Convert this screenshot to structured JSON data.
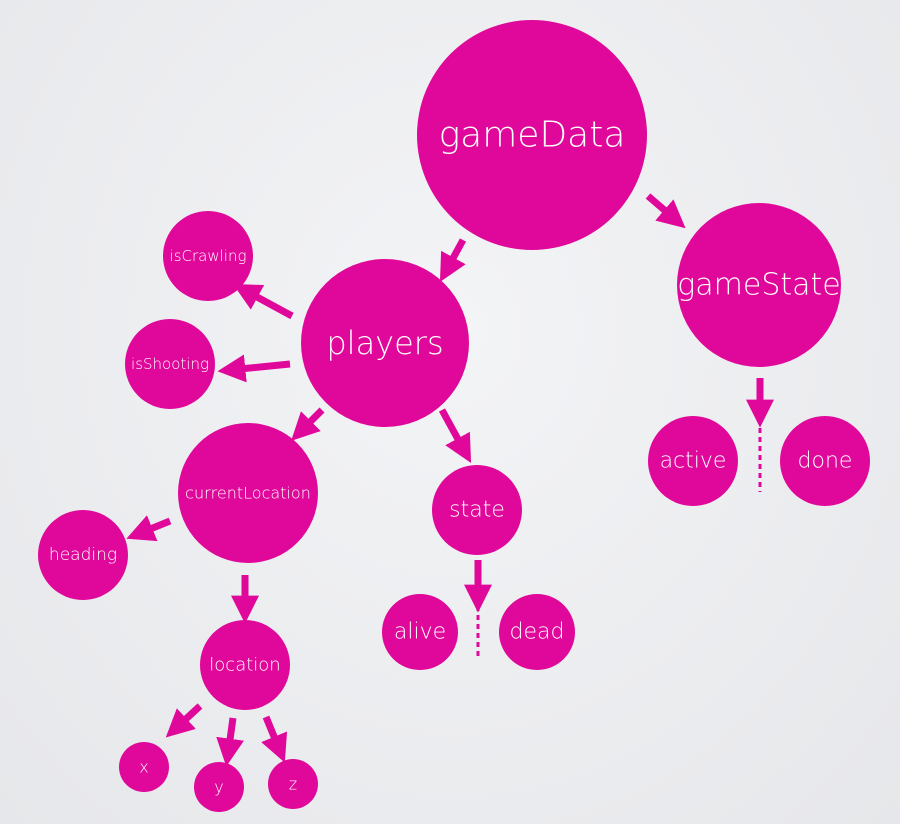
{
  "diagram": {
    "type": "tree",
    "color": "#e0089a",
    "nodes": [
      {
        "id": "gameData",
        "label": "gameData"
      },
      {
        "id": "gameState",
        "label": "gameState"
      },
      {
        "id": "players",
        "label": "players"
      },
      {
        "id": "isCrawling",
        "label": "isCrawling"
      },
      {
        "id": "isShooting",
        "label": "isShooting"
      },
      {
        "id": "currentLocation",
        "label": "currentLocation"
      },
      {
        "id": "heading",
        "label": "heading"
      },
      {
        "id": "state",
        "label": "state"
      },
      {
        "id": "alive",
        "label": "alive"
      },
      {
        "id": "dead",
        "label": "dead"
      },
      {
        "id": "location",
        "label": "location"
      },
      {
        "id": "x",
        "label": "x"
      },
      {
        "id": "y",
        "label": "y"
      },
      {
        "id": "z",
        "label": "z"
      },
      {
        "id": "active",
        "label": "active"
      },
      {
        "id": "done",
        "label": "done"
      }
    ],
    "edges": [
      {
        "from": "gameData",
        "to": "players"
      },
      {
        "from": "gameData",
        "to": "gameState"
      },
      {
        "from": "players",
        "to": "isCrawling"
      },
      {
        "from": "players",
        "to": "isShooting"
      },
      {
        "from": "players",
        "to": "currentLocation"
      },
      {
        "from": "players",
        "to": "state"
      },
      {
        "from": "currentLocation",
        "to": "heading"
      },
      {
        "from": "currentLocation",
        "to": "location"
      },
      {
        "from": "location",
        "to": "x"
      },
      {
        "from": "location",
        "to": "y"
      },
      {
        "from": "location",
        "to": "z"
      },
      {
        "from": "state",
        "to": [
          "alive",
          "dead"
        ],
        "kind": "either"
      },
      {
        "from": "gameState",
        "to": [
          "active",
          "done"
        ],
        "kind": "either"
      }
    ]
  }
}
